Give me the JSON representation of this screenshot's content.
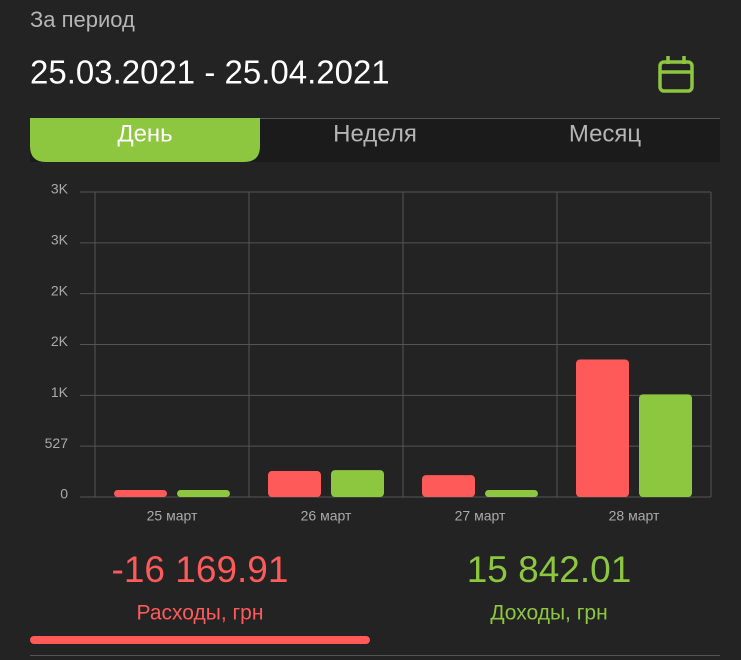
{
  "header": {
    "label": "За период",
    "date_range": "25.03.2021 - 25.04.2021"
  },
  "tabs": [
    "День",
    "Неделя",
    "Месяц"
  ],
  "chart_data": {
    "type": "bar",
    "categories": [
      "25 март",
      "26 март",
      "27 март",
      "28 март"
    ],
    "series": [
      {
        "color": "#ff5a5a",
        "values": [
          72,
          269,
          227,
          1426
        ]
      },
      {
        "color": "#8dc63f",
        "values": [
          72,
          279,
          72,
          1064
        ]
      }
    ],
    "ylim": [
      0,
      3162
    ],
    "yticks": [
      0,
      527,
      {
        "value": 1054,
        "label": "1K"
      },
      {
        "value": 1581,
        "label": "2K"
      },
      {
        "value": 2108,
        "label": "2K"
      },
      {
        "value": 2635,
        "label": "3K"
      },
      {
        "value": 3162,
        "label": "3K"
      }
    ],
    "grid": true
  },
  "summary": {
    "expenses": {
      "amount": "-16 169.91",
      "label": "Расходы, грн"
    },
    "income": {
      "amount": "15 842.01",
      "label": "Доходы, грн"
    }
  }
}
